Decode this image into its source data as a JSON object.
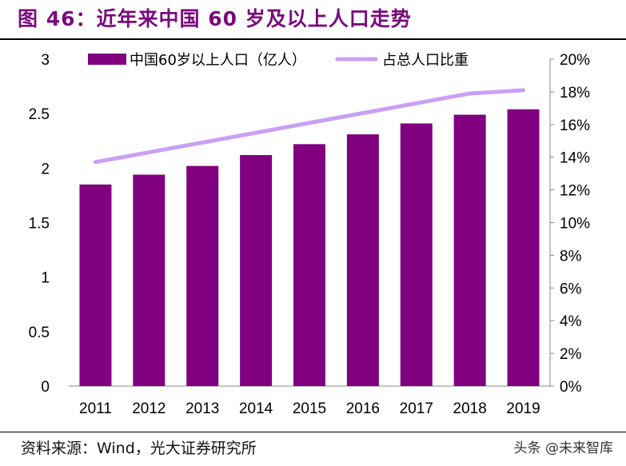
{
  "title": "图 46：近年来中国 60 岁及以上人口走势",
  "source": "资料来源：Wind，光大证券研究所",
  "watermark": "头条 @未来智库",
  "colors": {
    "title": "#7a0a7e",
    "bar": "#800080",
    "line": "#c9a0f5"
  },
  "chart_data": {
    "type": "bar+line",
    "categories": [
      "2011",
      "2012",
      "2013",
      "2014",
      "2015",
      "2016",
      "2017",
      "2018",
      "2019"
    ],
    "series": [
      {
        "name": "中国60岁以上人口（亿人）",
        "type": "bar",
        "axis": "left",
        "values": [
          1.85,
          1.94,
          2.02,
          2.12,
          2.22,
          2.31,
          2.41,
          2.49,
          2.54
        ]
      },
      {
        "name": "占总人口比重",
        "type": "line",
        "axis": "right",
        "values": [
          13.7,
          14.3,
          14.9,
          15.5,
          16.1,
          16.7,
          17.3,
          17.9,
          18.1
        ]
      }
    ],
    "y_left": {
      "ylim": [
        0,
        3
      ],
      "ticks": [
        "0",
        "0.5",
        "1",
        "1.5",
        "2",
        "2.5",
        "3"
      ]
    },
    "y_right": {
      "ylim": [
        0,
        20
      ],
      "ticks": [
        "0%",
        "2%",
        "4%",
        "6%",
        "8%",
        "10%",
        "12%",
        "14%",
        "16%",
        "18%",
        "20%"
      ]
    },
    "legend_placement": "top",
    "grid": false
  }
}
